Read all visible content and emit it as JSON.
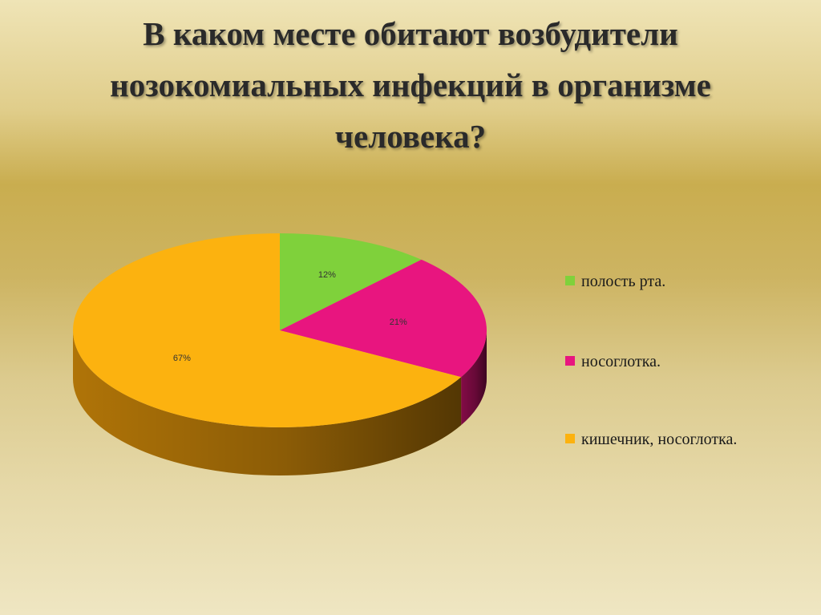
{
  "slide": {
    "title_lines": [
      "В каком месте обитают возбудители",
      "нозокомиальных инфекций в организме",
      "человека?"
    ]
  },
  "chart_data": {
    "type": "pie",
    "style": "3d",
    "legend_position": "right",
    "slices": [
      {
        "label": "полость рта.",
        "value": 12,
        "value_label": "12%",
        "color": "#7fd13b",
        "side_color": "#4f8a1e"
      },
      {
        "label": "носоглотка.",
        "value": 21,
        "value_label": "21%",
        "color": "#e8157f",
        "side_color": "#8a0c4a"
      },
      {
        "label": "кишечник, носоглотка.",
        "value": 67,
        "value_label": "67%",
        "color": "#fcb20f",
        "side_color": "#b97a08"
      }
    ]
  }
}
